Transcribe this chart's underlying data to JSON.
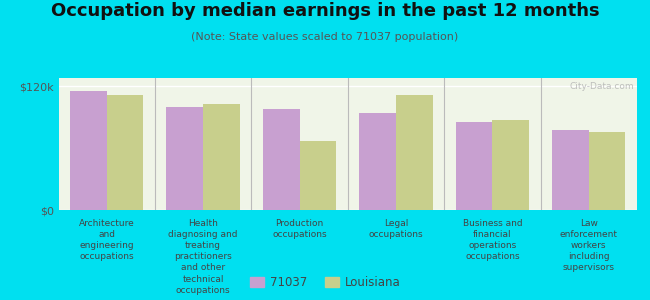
{
  "title": "Occupation by median earnings in the past 12 months",
  "subtitle": "(Note: State values scaled to 71037 population)",
  "categories": [
    "Architecture\nand\nengineering\noccupations",
    "Health\ndiagnosing and\ntreating\npractitioners\nand other\ntechnical\noccupations",
    "Production\noccupations",
    "Legal\noccupations",
    "Business and\nfinancial\noperations\noccupations",
    "Law\nenforcement\nworkers\nincluding\nsupervisors"
  ],
  "values_71037": [
    115000,
    100000,
    98000,
    94000,
    85000,
    78000
  ],
  "values_louisiana": [
    112000,
    103000,
    67000,
    112000,
    87000,
    76000
  ],
  "color_71037": "#c8a0d0",
  "color_louisiana": "#c8cf8c",
  "ylim": [
    0,
    128000
  ],
  "ytick_vals": [
    0,
    120000
  ],
  "ytick_labels": [
    "$0",
    "$120k"
  ],
  "plot_bg": "#f0f5e8",
  "outer_bg": "#00e0f0",
  "legend_label_71037": "71037",
  "legend_label_louisiana": "Louisiana",
  "watermark": "City-Data.com",
  "bar_width": 0.38,
  "divider_color": "#bbbbbb",
  "grid_color": "#ffffff",
  "title_fontsize": 13,
  "subtitle_fontsize": 8,
  "label_fontsize": 6.5,
  "ytick_fontsize": 8,
  "legend_fontsize": 8.5
}
